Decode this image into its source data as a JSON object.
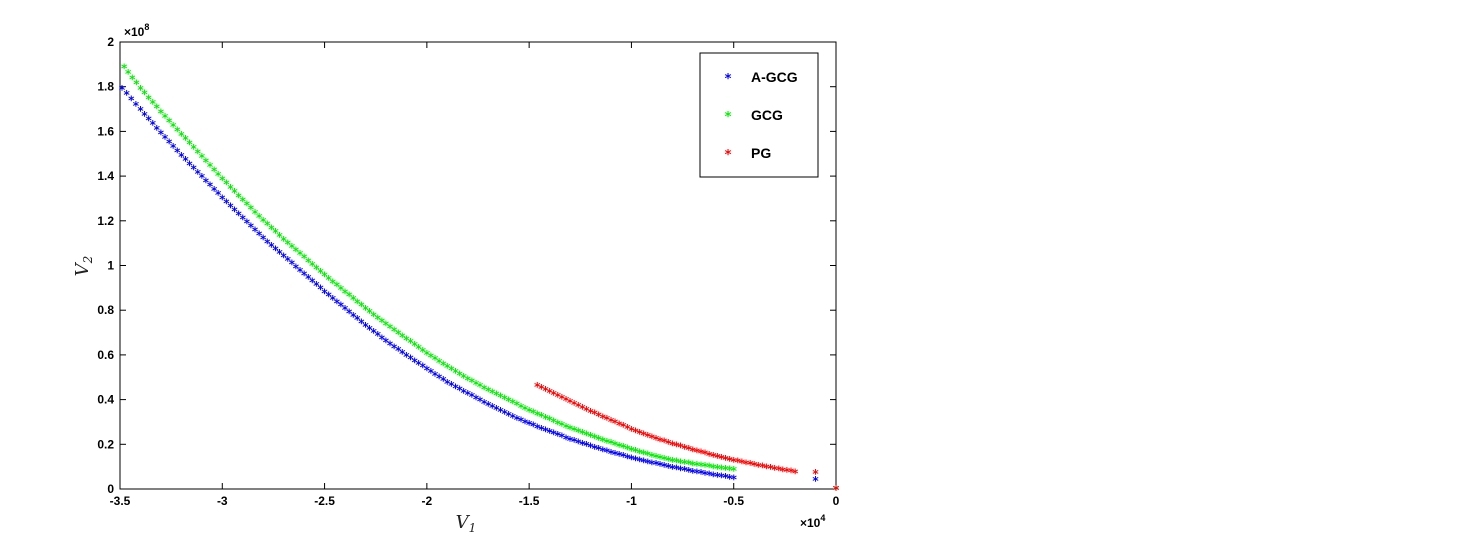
{
  "chart_data": {
    "type": "scatter",
    "xlabel_base": "V",
    "xlabel_sub": "1",
    "ylabel_base": "V",
    "ylabel_sub": "2",
    "x_exponent_label": "×10",
    "x_exponent_power": "4",
    "y_exponent_label": "×10",
    "y_exponent_power": "8",
    "xlim": [
      -35000,
      0
    ],
    "ylim": [
      0,
      200000000
    ],
    "x_ticks": [
      -35000,
      -30000,
      -25000,
      -20000,
      -15000,
      -10000,
      -5000,
      0
    ],
    "x_tick_labels": [
      "-3.5",
      "-3",
      "-2.5",
      "-2",
      "-1.5",
      "-1",
      "-0.5",
      "0"
    ],
    "y_ticks": [
      0,
      20000000,
      40000000,
      60000000,
      80000000,
      100000000,
      120000000,
      140000000,
      160000000,
      180000000,
      200000000
    ],
    "y_tick_labels": [
      "0",
      "0.2",
      "0.4",
      "0.6",
      "0.8",
      "1",
      "1.2",
      "1.4",
      "1.6",
      "1.8",
      "2"
    ],
    "legend_position": "top-right",
    "series": [
      {
        "name": "A-GCG",
        "color": "#0000ff",
        "marker": "*",
        "x": [
          -34900,
          -34000,
          -33000,
          -32000,
          -31000,
          -30000,
          -29000,
          -28000,
          -27000,
          -26000,
          -25000,
          -24000,
          -23000,
          -22000,
          -21000,
          -20000,
          -19000,
          -18000,
          -17000,
          -16000,
          -15000,
          -14000,
          -13000,
          -12000,
          -11000,
          -10000,
          -9000,
          -8000,
          -7000,
          -6000,
          -5000
        ],
        "y": [
          179000000,
          169500000,
          159000000,
          149000000,
          139500000,
          130000000,
          121000000,
          112000000,
          104000000,
          96000000,
          88000000,
          80500000,
          73000000,
          66000000,
          59500000,
          53500000,
          47500000,
          42500000,
          37500000,
          33000000,
          29000000,
          25500000,
          22000000,
          19000000,
          16200000,
          13700000,
          11500000,
          9500000,
          7700000,
          6100000,
          4700000
        ]
      },
      {
        "name": "GCG",
        "color": "#00ee00",
        "marker": "*",
        "x": [
          -34800,
          -34000,
          -33000,
          -32000,
          -31000,
          -30000,
          -29000,
          -28000,
          -27000,
          -26000,
          -25000,
          -24000,
          -23000,
          -22000,
          -21000,
          -20000,
          -19000,
          -18000,
          -17000,
          -16000,
          -15000,
          -14000,
          -13000,
          -12000,
          -11000,
          -10000,
          -9000,
          -8000,
          -7000,
          -6000,
          -5000
        ],
        "y": [
          188500000,
          179000000,
          168500000,
          158500000,
          148500000,
          138500000,
          129000000,
          120000000,
          111500000,
          103500000,
          95500000,
          88000000,
          80500000,
          73500000,
          67000000,
          60500000,
          54500000,
          49000000,
          44000000,
          39500000,
          35000000,
          31000000,
          27000000,
          23700000,
          20500000,
          17500000,
          14800000,
          12500000,
          11000000,
          9700000,
          8600000
        ]
      },
      {
        "name": "PG",
        "color": "#ff0000",
        "marker": "*",
        "x": [
          -14600,
          -14000,
          -13000,
          -12000,
          -11000,
          -10000,
          -9000,
          -8000,
          -7000,
          -6000,
          -5000,
          -4000,
          -3000,
          -2000,
          -1000,
          0
        ],
        "y": [
          46000000,
          43500000,
          39000000,
          34500000,
          30500000,
          26500000,
          23000000,
          20000000,
          17300000,
          14800000,
          12600000,
          10700000,
          9000000,
          7400000,
          7200000,
          0
        ]
      }
    ],
    "extra_points": [
      {
        "series": "A-GCG",
        "x": -1000,
        "y": 4000000
      },
      {
        "series": "A-GCG",
        "x": 0,
        "y": 0
      },
      {
        "series": "GCG",
        "x": 0,
        "y": 0
      }
    ]
  }
}
